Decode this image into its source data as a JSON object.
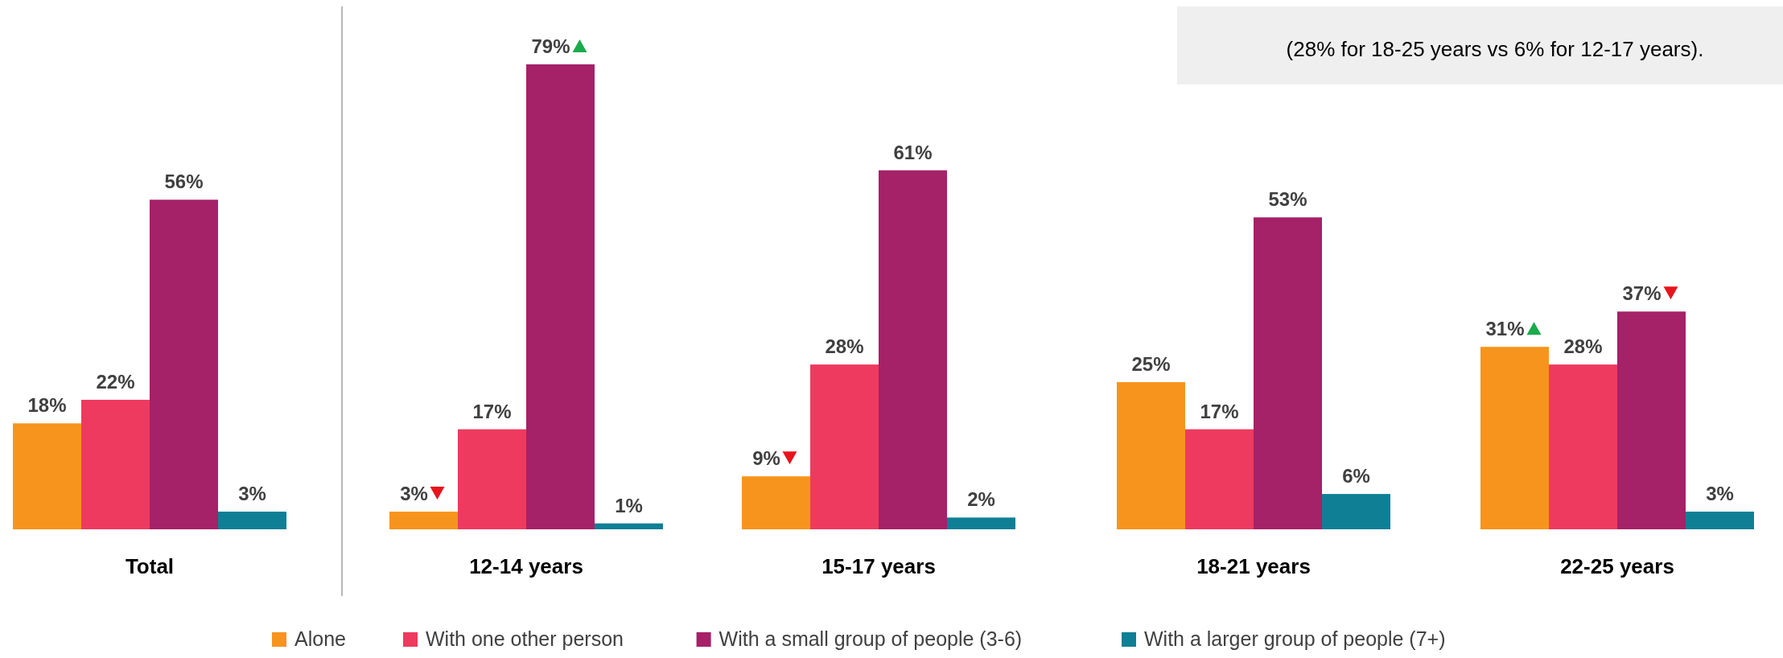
{
  "chart_data": {
    "type": "bar",
    "categories": [
      "Total",
      "12-14 years",
      "15-17 years",
      "18-21 years",
      "22-25 years"
    ],
    "series": [
      {
        "name": "Alone",
        "color": "#f7941d",
        "values": [
          18,
          3,
          9,
          25,
          31
        ],
        "value_labels": [
          "18%",
          "3%",
          "9%",
          "25%",
          "31%"
        ]
      },
      {
        "name": "With one other person",
        "color": "#ee3a5f",
        "values": [
          22,
          17,
          28,
          17,
          28
        ],
        "value_labels": [
          "22%",
          "17%",
          "28%",
          "17%",
          "28%"
        ]
      },
      {
        "name": "With a small group of people (3-6)",
        "color": "#a52168",
        "values": [
          56,
          79,
          61,
          53,
          37
        ],
        "value_labels": [
          "56%",
          "79%",
          "61%",
          "53%",
          "37%"
        ]
      },
      {
        "name": "With a larger group of people (7+)",
        "color": "#0f7f96",
        "values": [
          3,
          1,
          2,
          6,
          3
        ],
        "value_labels": [
          "3%",
          "1%",
          "2%",
          "6%",
          "3%"
        ]
      }
    ],
    "legend": "bottom",
    "annotations": [
      "(28% for 18-25 years vs 6% for 12-17 years)."
    ]
  }
}
